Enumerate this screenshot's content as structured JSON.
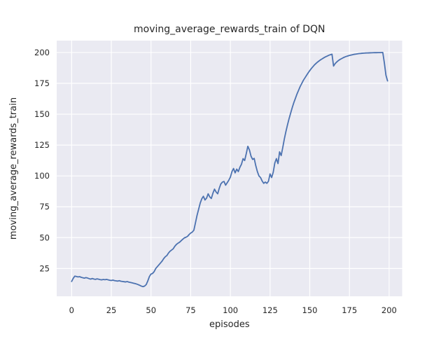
{
  "figure": {
    "title": "moving_average_rewards_train of DQN",
    "xlabel": "episodes",
    "ylabel": "moving_average_rewards_train"
  },
  "chart_data": {
    "type": "line",
    "title": "moving_average_rewards_train of DQN",
    "xlabel": "episodes",
    "ylabel": "moving_average_rewards_train",
    "grid": true,
    "legend": false,
    "xticks": [
      0,
      25,
      50,
      75,
      100,
      125,
      150,
      175,
      200
    ],
    "yticks": [
      25,
      50,
      75,
      100,
      125,
      150,
      175,
      200
    ],
    "xlim": [
      -9.4,
      208.2
    ],
    "ylim": [
      2.5,
      209.6
    ],
    "style": {
      "plot_bg": "#EAEAF2",
      "grid_color": "#FFFFFF",
      "line_color": "#4C72B0",
      "text_color": "#262626"
    },
    "series": [
      {
        "name": "moving_average_rewards_train",
        "color": "#4C72B0",
        "x_start": 0,
        "x_step": 1,
        "values": [
          14.5,
          17.0,
          18.8,
          18.5,
          18.2,
          18.4,
          17.9,
          17.5,
          17.2,
          17.6,
          17.3,
          16.8,
          16.4,
          16.9,
          16.5,
          16.2,
          16.6,
          16.3,
          16.0,
          15.8,
          16.1,
          15.9,
          16.2,
          15.8,
          15.5,
          15.3,
          15.6,
          15.2,
          15.0,
          14.8,
          15.1,
          14.7,
          14.5,
          14.3,
          14.1,
          14.4,
          14.0,
          13.7,
          13.4,
          13.1,
          12.8,
          12.4,
          11.9,
          11.3,
          10.7,
          10.3,
          10.8,
          12.0,
          15.0,
          18.5,
          20.5,
          21.0,
          22.5,
          25.0,
          26.5,
          28.0,
          29.5,
          31.0,
          33.0,
          34.5,
          35.5,
          37.5,
          39.0,
          40.0,
          41.0,
          43.0,
          44.5,
          45.5,
          46.3,
          47.5,
          48.7,
          49.8,
          50.3,
          51.0,
          52.5,
          53.7,
          54.5,
          56.0,
          62.0,
          68.0,
          73.0,
          78.0,
          81.5,
          83.5,
          80.5,
          82.0,
          85.5,
          83.0,
          81.7,
          86.0,
          89.3,
          87.0,
          85.5,
          90.0,
          93.5,
          95.0,
          95.5,
          92.5,
          94.5,
          96.5,
          99.0,
          103.5,
          106.0,
          102.5,
          105.5,
          103.5,
          107.0,
          109.5,
          114.0,
          112.5,
          118.0,
          124.0,
          121.0,
          116.0,
          113.4,
          114.2,
          108.3,
          103.5,
          100.0,
          98.7,
          95.9,
          94.0,
          95.0,
          94.0,
          95.7,
          101.6,
          98.7,
          103.0,
          110.5,
          114.0,
          110.0,
          119.5,
          116.5,
          123.0,
          130.0,
          136.0,
          141.5,
          146.5,
          151.0,
          155.5,
          159.5,
          163.0,
          166.5,
          169.5,
          172.5,
          175.0,
          177.5,
          179.5,
          181.5,
          183.5,
          185.3,
          187.0,
          188.5,
          190.0,
          191.2,
          192.3,
          193.3,
          194.2,
          195.0,
          195.8,
          196.5,
          197.1,
          197.7,
          198.2,
          198.6,
          189.0,
          191.0,
          192.3,
          193.4,
          194.3,
          195.0,
          195.7,
          196.3,
          196.8,
          197.2,
          197.6,
          197.9,
          198.2,
          198.5,
          198.7,
          198.9,
          199.1,
          199.2,
          199.35,
          199.45,
          199.55,
          199.6,
          199.65,
          199.7,
          199.75,
          199.8,
          199.85,
          199.85,
          199.9,
          199.9,
          199.95,
          200.0,
          191.5,
          181.5,
          177.0
        ]
      }
    ]
  }
}
